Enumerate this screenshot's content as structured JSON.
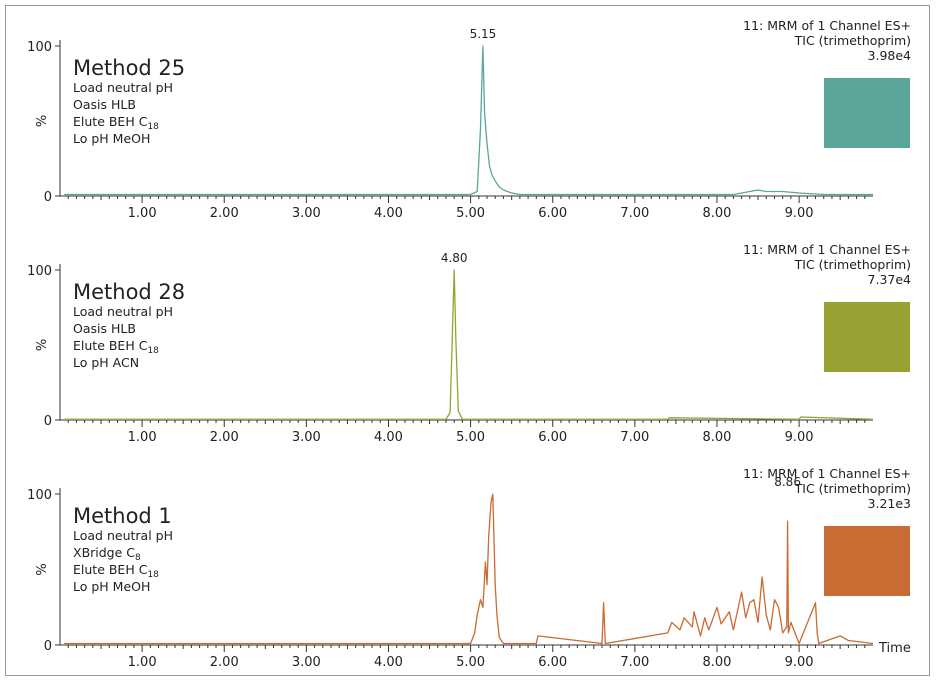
{
  "x_axis": {
    "ticks": [
      "1.00",
      "2.00",
      "3.00",
      "4.00",
      "5.00",
      "6.00",
      "7.00",
      "8.00",
      "9.00"
    ],
    "label": "Time",
    "xlim": [
      0,
      9.9
    ]
  },
  "colors": {
    "panel1": "#5aa69b",
    "panel2": "#9aa133",
    "panel3": "#c96b32",
    "label_accent": "#c0743e"
  },
  "chart_data": [
    {
      "type": "line",
      "panel_title": "Method 25",
      "labels": {
        "line1": "Load neutral pH",
        "line2": "Oasis HLB",
        "line3": "Elute BEH C",
        "line3_sub": "18",
        "line4": "Lo pH MeOH"
      },
      "info": [
        "11: MRM of 1 Channel ES+",
        "TIC (trimethoprim)",
        "3.98e4"
      ],
      "ylabel": "%",
      "yticks": [
        "100",
        "0"
      ],
      "ylim": [
        0,
        100
      ],
      "peak_label": "5.15",
      "peak_x": 5.15,
      "series": [
        {
          "x": [
            0.05,
            1,
            2,
            3,
            4,
            5.0,
            5.08,
            5.12,
            5.15,
            5.17,
            5.2,
            5.23,
            5.26,
            5.3,
            5.35,
            5.4,
            5.5,
            5.6,
            5.8,
            6.5,
            7.5,
            8.2,
            8.4,
            8.5,
            8.6,
            8.8,
            9.0,
            9.3,
            9.9
          ],
          "y": [
            1,
            1,
            1,
            1,
            1,
            1,
            3,
            45,
            100,
            55,
            35,
            20,
            14,
            10,
            6,
            4,
            2,
            1,
            1,
            1,
            1,
            1,
            3,
            4,
            3,
            3,
            2,
            1,
            1
          ]
        }
      ]
    },
    {
      "type": "line",
      "panel_title": "Method 28",
      "labels": {
        "line1": "Load neutral pH",
        "line2": "Oasis HLB",
        "line3": "Elute BEH C",
        "line3_sub": "18",
        "line4": "Lo pH ACN"
      },
      "info": [
        "11: MRM of 1 Channel ES+",
        "TIC (trimethoprim)",
        "7.37e4"
      ],
      "ylabel": "%",
      "yticks": [
        "100",
        "0"
      ],
      "ylim": [
        0,
        100
      ],
      "peak_label": "4.80",
      "peak_x": 4.8,
      "series": [
        {
          "x": [
            0.05,
            1,
            2,
            3,
            4,
            4.7,
            4.75,
            4.78,
            4.8,
            4.82,
            4.85,
            4.9,
            5.5,
            6.5,
            7.4,
            7.42,
            8.2,
            9.0,
            9.02,
            9.9
          ],
          "y": [
            0.5,
            0.5,
            0.5,
            0.5,
            0.5,
            0.5,
            5,
            60,
            100,
            55,
            6,
            0.5,
            0.5,
            0.5,
            0.5,
            1.5,
            1,
            0.5,
            2,
            0.5
          ]
        }
      ]
    },
    {
      "type": "line",
      "panel_title": "Method 1",
      "labels": {
        "line1": "Load neutral pH",
        "line2": "XBridge C",
        "line2_sub": "8",
        "line3": "Elute BEH C",
        "line3_sub": "18",
        "line4": "Lo pH MeOH"
      },
      "info": [
        "11: MRM of 1 Channel ES+",
        "TIC (trimethoprim)",
        "3.21e3"
      ],
      "ylabel": "%",
      "yticks": [
        "100",
        "0"
      ],
      "ylim": [
        0,
        100
      ],
      "peak_label": "8.86",
      "peak_x": 8.86,
      "series": [
        {
          "x": [
            0.05,
            1,
            2,
            3,
            4,
            5.0,
            5.05,
            5.08,
            5.12,
            5.15,
            5.18,
            5.2,
            5.22,
            5.25,
            5.27,
            5.28,
            5.3,
            5.32,
            5.35,
            5.4,
            5.8,
            5.82,
            6.6,
            6.62,
            6.64,
            7.4,
            7.45,
            7.55,
            7.6,
            7.7,
            7.72,
            7.8,
            7.85,
            7.9,
            8.0,
            8.05,
            8.15,
            8.2,
            8.3,
            8.35,
            8.4,
            8.45,
            8.5,
            8.55,
            8.6,
            8.65,
            8.7,
            8.75,
            8.8,
            8.85,
            8.86,
            8.87,
            8.9,
            9.0,
            9.2,
            9.22,
            9.24,
            9.5,
            9.6,
            9.9
          ],
          "y": [
            1,
            1,
            1,
            1,
            1,
            1,
            8,
            20,
            30,
            25,
            55,
            40,
            72,
            95,
            100,
            80,
            40,
            20,
            5,
            1,
            1,
            6,
            1,
            28,
            1,
            8,
            15,
            10,
            18,
            12,
            22,
            6,
            18,
            10,
            25,
            14,
            22,
            10,
            35,
            18,
            28,
            30,
            15,
            45,
            20,
            10,
            30,
            25,
            8,
            12,
            82,
            8,
            15,
            1,
            28,
            8,
            1,
            6,
            3,
            1
          ]
        }
      ]
    }
  ]
}
